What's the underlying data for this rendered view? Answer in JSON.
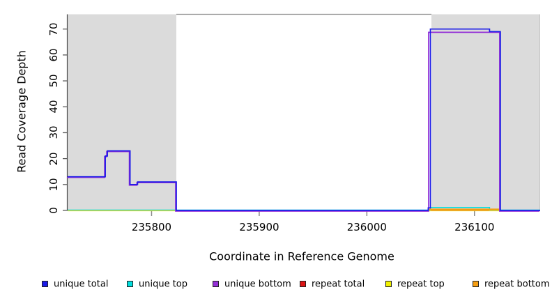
{
  "figure": {
    "x_axis": {
      "label": "Coordinate in Reference Genome",
      "ticks": [
        "235800",
        "235900",
        "236000",
        "236100"
      ]
    },
    "y_axis": {
      "label": "Read Coverage Depth",
      "ticks": [
        "0",
        "10",
        "20",
        "30",
        "40",
        "50",
        "60",
        "70"
      ]
    },
    "legend": [
      {
        "label": "unique total",
        "color": "#1b1be8"
      },
      {
        "label": "unique top",
        "color": "#00dede"
      },
      {
        "label": "unique bottom",
        "color": "#9430d6"
      },
      {
        "label": "repeat total",
        "color": "#dc1414"
      },
      {
        "label": "repeat top",
        "color": "#f0f000"
      },
      {
        "label": "repeat bottom",
        "color": "#f59e12"
      }
    ]
  },
  "chart_data": {
    "type": "line",
    "title": "",
    "xlabel": "Coordinate in Reference Genome",
    "ylabel": "Read Coverage Depth",
    "xlim": [
      235722,
      236161
    ],
    "ylim": [
      0,
      75.7
    ],
    "grid": false,
    "legend_position": "bottom",
    "band_color": "#dbdbdb",
    "highlight_bands": [
      {
        "x": [
          235722,
          235823
        ]
      },
      {
        "x": [
          236060,
          236161
        ]
      }
    ],
    "series": [
      {
        "name": "repeat total",
        "color": "#dc1414",
        "points": [
          [
            235722,
            0
          ],
          [
            236161,
            0
          ]
        ]
      },
      {
        "name": "unique top",
        "color": "#00dede",
        "points": [
          [
            235722,
            0
          ],
          [
            236059,
            0
          ],
          [
            236059,
            1
          ],
          [
            236114,
            1
          ],
          [
            236114,
            0
          ],
          [
            236161,
            0
          ]
        ]
      },
      {
        "name": "repeat top",
        "color": "#f0f000",
        "points": [
          [
            235722,
            0
          ],
          [
            236161,
            0
          ]
        ]
      },
      {
        "name": "repeat bottom",
        "color": "#f59e12",
        "points": [
          [
            236058,
            0
          ],
          [
            236124,
            0
          ]
        ]
      },
      {
        "name": "unique bottom",
        "color": "#9430d6",
        "points": [
          [
            235722,
            13
          ],
          [
            235757,
            13
          ],
          [
            235757,
            21
          ],
          [
            235759,
            21
          ],
          [
            235759,
            23
          ],
          [
            235780,
            23
          ],
          [
            235780,
            10
          ],
          [
            235787,
            10
          ],
          [
            235787,
            11
          ],
          [
            235823,
            11
          ],
          [
            235823,
            0
          ],
          [
            236058,
            0
          ],
          [
            236058,
            69
          ],
          [
            236124,
            69
          ],
          [
            236124,
            0
          ],
          [
            236161,
            0
          ]
        ]
      },
      {
        "name": "unique total",
        "color": "#1b1be8",
        "points": [
          [
            235722,
            13
          ],
          [
            235757,
            13
          ],
          [
            235757,
            21
          ],
          [
            235759,
            21
          ],
          [
            235759,
            23
          ],
          [
            235780,
            23
          ],
          [
            235780,
            10
          ],
          [
            235787,
            10
          ],
          [
            235787,
            11
          ],
          [
            235823,
            11
          ],
          [
            235823,
            0
          ],
          [
            236057,
            0
          ],
          [
            236057,
            1
          ],
          [
            236059,
            1
          ],
          [
            236059,
            70
          ],
          [
            236114,
            70
          ],
          [
            236114,
            69
          ],
          [
            236124,
            69
          ],
          [
            236124,
            0
          ],
          [
            236161,
            0
          ]
        ]
      }
    ]
  }
}
